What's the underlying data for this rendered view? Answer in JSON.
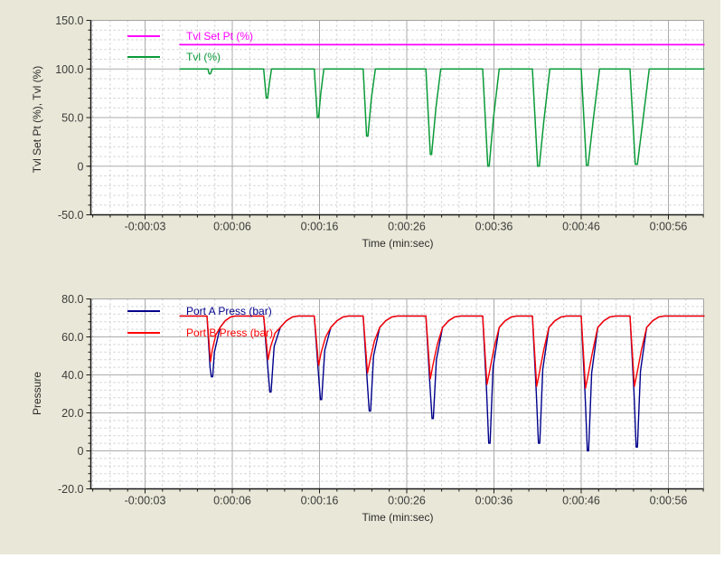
{
  "page": {
    "panel_bg": "#e9e7d7",
    "plot_bg": "#ffffff",
    "grid_major_color": "#ababab",
    "grid_minor_color": "#c9c9c9",
    "axis_color": "#1a1a1a",
    "tick_label_color": "#3c3c3c"
  },
  "chart_data": [
    {
      "type": "line",
      "title": "",
      "xlabel": "Time (min:sec)",
      "ylabel": "Tvl Set Pt (%), Tvl (%)",
      "ylim": [
        -50,
        150
      ],
      "xlim_seconds": [
        -10.2,
        60.1
      ],
      "grid": {
        "major": true,
        "minor_dashed": true
      },
      "legend_position": "inside-top-left",
      "y_ticks": [
        {
          "label": "150.0",
          "v": 150
        },
        {
          "label": "100.0",
          "v": 100
        },
        {
          "label": "50.0",
          "v": 50
        },
        {
          "label": "0",
          "v": 0
        },
        {
          "label": "-50.0",
          "v": -50
        }
      ],
      "y_minor_step": 10,
      "x_ticks": [
        {
          "label": "-0:00:03",
          "t": -4
        },
        {
          "label": "0:00:06",
          "t": 6
        },
        {
          "label": "0:00:16",
          "t": 16
        },
        {
          "label": "0:00:26",
          "t": 26
        },
        {
          "label": "0:00:36",
          "t": 36
        },
        {
          "label": "0:00:46",
          "t": 46
        },
        {
          "label": "0:00:56",
          "t": 56
        }
      ],
      "x_minor_step_seconds": 2,
      "series": [
        {
          "name": "Tvl Set Pt (%)",
          "color": "#ff00ff",
          "width": 1.8,
          "points": [
            [
              0,
              125
            ],
            [
              60.1,
              125
            ]
          ]
        },
        {
          "name": "Tvl (%)",
          "color": "#0a9b38",
          "width": 1.5,
          "points": [
            [
              0,
              100
            ],
            [
              3.2,
              100
            ],
            [
              3.35,
              95
            ],
            [
              3.5,
              95
            ],
            [
              3.7,
              100
            ],
            [
              9.6,
              100
            ],
            [
              9.9,
              70
            ],
            [
              10.05,
              70
            ],
            [
              10.25,
              85
            ],
            [
              10.5,
              100
            ],
            [
              15.4,
              100
            ],
            [
              15.75,
              50
            ],
            [
              15.9,
              50
            ],
            [
              16.15,
              75
            ],
            [
              16.5,
              100
            ],
            [
              21.0,
              100
            ],
            [
              21.4,
              31
            ],
            [
              21.55,
              31
            ],
            [
              21.95,
              70
            ],
            [
              22.4,
              100
            ],
            [
              28.2,
              100
            ],
            [
              28.7,
              12
            ],
            [
              28.85,
              12
            ],
            [
              29.35,
              60
            ],
            [
              29.9,
              100
            ],
            [
              34.7,
              100
            ],
            [
              35.3,
              0
            ],
            [
              35.45,
              0
            ],
            [
              35.95,
              50
            ],
            [
              36.6,
              100
            ],
            [
              40.4,
              100
            ],
            [
              41.0,
              0
            ],
            [
              41.2,
              0
            ],
            [
              41.7,
              45
            ],
            [
              42.4,
              100
            ],
            [
              46.0,
              100
            ],
            [
              46.6,
              1
            ],
            [
              46.8,
              1
            ],
            [
              47.35,
              45
            ],
            [
              48.1,
              100
            ],
            [
              51.6,
              100
            ],
            [
              52.2,
              2
            ],
            [
              52.45,
              2
            ],
            [
              53.05,
              45
            ],
            [
              53.8,
              100
            ],
            [
              60.1,
              100
            ]
          ]
        }
      ]
    },
    {
      "type": "line",
      "title": "",
      "xlabel": "Time (min:sec)",
      "ylabel": "Pressure",
      "ylim": [
        -20,
        80
      ],
      "xlim_seconds": [
        -10.2,
        60.1
      ],
      "grid": {
        "major": true,
        "minor_dashed": true
      },
      "legend_position": "inside-top-left",
      "y_ticks": [
        {
          "label": "80.0",
          "v": 80
        },
        {
          "label": "60.0",
          "v": 60
        },
        {
          "label": "40.0",
          "v": 40
        },
        {
          "label": "20.0",
          "v": 20
        },
        {
          "label": "0",
          "v": 0
        },
        {
          "label": "-20.0",
          "v": -20
        }
      ],
      "y_minor_step": 4,
      "x_ticks": [
        {
          "label": "-0:00:03",
          "t": -4
        },
        {
          "label": "0:00:06",
          "t": 6
        },
        {
          "label": "0:00:16",
          "t": 16
        },
        {
          "label": "0:00:26",
          "t": 26
        },
        {
          "label": "0:00:36",
          "t": 36
        },
        {
          "label": "0:00:46",
          "t": 46
        },
        {
          "label": "0:00:56",
          "t": 56
        }
      ],
      "x_minor_step_seconds": 2,
      "series": [
        {
          "name": "Port A Press (bar)",
          "color": "#00008b",
          "width": 1.4,
          "points": [
            [
              0,
              71
            ],
            [
              3.1,
              71
            ],
            [
              3.45,
              44
            ],
            [
              3.6,
              39
            ],
            [
              3.75,
              39
            ],
            [
              3.95,
              52
            ],
            [
              4.6,
              65
            ],
            [
              5.2,
              68.5
            ],
            [
              5.8,
              70.5
            ],
            [
              6.3,
              71
            ],
            [
              9.6,
              71
            ],
            [
              10.05,
              45
            ],
            [
              10.3,
              31
            ],
            [
              10.45,
              31
            ],
            [
              10.8,
              55
            ],
            [
              11.5,
              65
            ],
            [
              12.2,
              68.5
            ],
            [
              12.9,
              70.5
            ],
            [
              13.5,
              71
            ],
            [
              15.4,
              71
            ],
            [
              15.85,
              42
            ],
            [
              16.1,
              27
            ],
            [
              16.25,
              27
            ],
            [
              16.6,
              53
            ],
            [
              17.3,
              65
            ],
            [
              18.0,
              68.5
            ],
            [
              18.7,
              70.5
            ],
            [
              19.3,
              71
            ],
            [
              21.0,
              71
            ],
            [
              21.45,
              38
            ],
            [
              21.7,
              21
            ],
            [
              21.85,
              21
            ],
            [
              22.2,
              50
            ],
            [
              22.9,
              65
            ],
            [
              23.6,
              68.5
            ],
            [
              24.3,
              70.5
            ],
            [
              24.9,
              71
            ],
            [
              28.2,
              71
            ],
            [
              28.65,
              35
            ],
            [
              28.9,
              17
            ],
            [
              29.05,
              17
            ],
            [
              29.4,
              48
            ],
            [
              30.1,
              65
            ],
            [
              30.8,
              68.5
            ],
            [
              31.5,
              70.5
            ],
            [
              32.1,
              71
            ],
            [
              34.7,
              71
            ],
            [
              35.15,
              32
            ],
            [
              35.4,
              4
            ],
            [
              35.55,
              4
            ],
            [
              35.9,
              44
            ],
            [
              36.6,
              65
            ],
            [
              37.3,
              68.5
            ],
            [
              38.0,
              70.5
            ],
            [
              38.6,
              71
            ],
            [
              40.4,
              71
            ],
            [
              40.85,
              31
            ],
            [
              41.1,
              4
            ],
            [
              41.25,
              4
            ],
            [
              41.6,
              43
            ],
            [
              42.3,
              65
            ],
            [
              43.0,
              68.5
            ],
            [
              43.7,
              70.5
            ],
            [
              44.3,
              71
            ],
            [
              46.0,
              71
            ],
            [
              46.45,
              30
            ],
            [
              46.7,
              0
            ],
            [
              46.85,
              0
            ],
            [
              47.2,
              41
            ],
            [
              47.9,
              65
            ],
            [
              48.6,
              68.5
            ],
            [
              49.3,
              70.5
            ],
            [
              49.9,
              71
            ],
            [
              51.6,
              71
            ],
            [
              52.05,
              31
            ],
            [
              52.3,
              2
            ],
            [
              52.45,
              2
            ],
            [
              52.8,
              42
            ],
            [
              53.5,
              65
            ],
            [
              54.2,
              68.5
            ],
            [
              54.9,
              70.5
            ],
            [
              55.5,
              71
            ],
            [
              60.1,
              71
            ]
          ]
        },
        {
          "name": "Port B Press (bar)",
          "color": "#fe0000",
          "width": 1.4,
          "points": [
            [
              0,
              71
            ],
            [
              3.1,
              71
            ],
            [
              3.5,
              47
            ],
            [
              3.7,
              53
            ],
            [
              4.1,
              61
            ],
            [
              4.6,
              65
            ],
            [
              5.2,
              68.5
            ],
            [
              5.8,
              70.5
            ],
            [
              6.3,
              71
            ],
            [
              9.6,
              71
            ],
            [
              10.1,
              48
            ],
            [
              10.4,
              55
            ],
            [
              10.9,
              62
            ],
            [
              11.5,
              65
            ],
            [
              12.2,
              68.5
            ],
            [
              12.9,
              70.5
            ],
            [
              13.5,
              71
            ],
            [
              15.4,
              71
            ],
            [
              15.9,
              45
            ],
            [
              16.2,
              52
            ],
            [
              16.7,
              60
            ],
            [
              17.3,
              65
            ],
            [
              18.0,
              68.5
            ],
            [
              18.7,
              70.5
            ],
            [
              19.3,
              71
            ],
            [
              21.0,
              71
            ],
            [
              21.5,
              41
            ],
            [
              21.8,
              48
            ],
            [
              22.3,
              58
            ],
            [
              22.9,
              65
            ],
            [
              23.6,
              68.5
            ],
            [
              24.3,
              70.5
            ],
            [
              24.9,
              71
            ],
            [
              28.2,
              71
            ],
            [
              28.7,
              38
            ],
            [
              29.0,
              45
            ],
            [
              29.5,
              56
            ],
            [
              30.1,
              65
            ],
            [
              30.8,
              68.5
            ],
            [
              31.5,
              70.5
            ],
            [
              32.1,
              71
            ],
            [
              34.7,
              71
            ],
            [
              35.2,
              35
            ],
            [
              35.5,
              42
            ],
            [
              36.0,
              54
            ],
            [
              36.6,
              65
            ],
            [
              37.3,
              68.5
            ],
            [
              38.0,
              70.5
            ],
            [
              38.6,
              71
            ],
            [
              40.4,
              71
            ],
            [
              40.9,
              34
            ],
            [
              41.2,
              41
            ],
            [
              41.7,
              53
            ],
            [
              42.3,
              65
            ],
            [
              43.0,
              68.5
            ],
            [
              43.7,
              70.5
            ],
            [
              44.3,
              71
            ],
            [
              46.0,
              71
            ],
            [
              46.5,
              33
            ],
            [
              46.8,
              40
            ],
            [
              47.3,
              52
            ],
            [
              47.9,
              65
            ],
            [
              48.6,
              68.5
            ],
            [
              49.3,
              70.5
            ],
            [
              49.9,
              71
            ],
            [
              51.6,
              71
            ],
            [
              52.1,
              34
            ],
            [
              52.4,
              41
            ],
            [
              52.9,
              53
            ],
            [
              53.5,
              65
            ],
            [
              54.2,
              68.5
            ],
            [
              54.9,
              70.5
            ],
            [
              55.5,
              71
            ],
            [
              60.1,
              71
            ]
          ]
        }
      ]
    }
  ]
}
